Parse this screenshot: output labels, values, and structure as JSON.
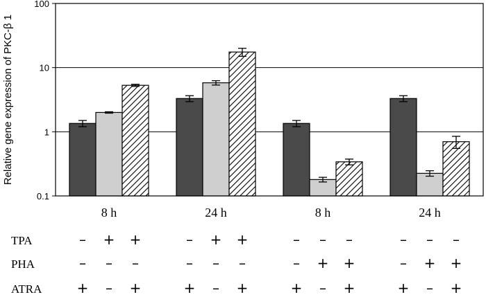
{
  "chart_data": {
    "type": "bar",
    "scale": "log",
    "ylabel": "Relative gene expression of PKC-β 1",
    "ylim": [
      0.1,
      100
    ],
    "y_ticks": [
      "0.1",
      "1",
      "10",
      "100"
    ],
    "grid": true,
    "groups": [
      {
        "label": "8 h",
        "bars": [
          {
            "value": 1.35,
            "err": 0.15,
            "fill": "dark"
          },
          {
            "value": 2.0,
            "err": 0.05,
            "fill": "light"
          },
          {
            "value": 5.3,
            "err": 0.2,
            "fill": "hatched"
          }
        ]
      },
      {
        "label": "24 h",
        "bars": [
          {
            "value": 3.3,
            "err": 0.35,
            "fill": "dark"
          },
          {
            "value": 5.8,
            "err": 0.45,
            "fill": "light"
          },
          {
            "value": 17.5,
            "err": 2.5,
            "fill": "hatched"
          }
        ]
      },
      {
        "label": "8 h",
        "bars": [
          {
            "value": 1.35,
            "err": 0.15,
            "fill": "dark"
          },
          {
            "value": 0.18,
            "err": 0.015,
            "fill": "light"
          },
          {
            "value": 0.34,
            "err": 0.035,
            "fill": "hatched"
          }
        ]
      },
      {
        "label": "24 h",
        "bars": [
          {
            "value": 3.3,
            "err": 0.35,
            "fill": "dark"
          },
          {
            "value": 0.225,
            "err": 0.022,
            "fill": "light"
          },
          {
            "value": 0.7,
            "err": 0.15,
            "fill": "hatched"
          }
        ]
      }
    ]
  },
  "treatments": {
    "rows": [
      {
        "label": "TPA",
        "signs": [
          "–",
          "+",
          "+",
          "–",
          "+",
          "+",
          "–",
          "–",
          "–",
          "–",
          "–",
          "–"
        ]
      },
      {
        "label": "PHA",
        "signs": [
          "–",
          "–",
          "–",
          "–",
          "–",
          "–",
          "–",
          "+",
          "+",
          "–",
          "+",
          "+"
        ]
      },
      {
        "label": "ATRA",
        "signs": [
          "+",
          "–",
          "+",
          "+",
          "–",
          "+",
          "+",
          "–",
          "+",
          "+",
          "–",
          "+"
        ]
      }
    ]
  },
  "colors": {
    "dark": "#4a4a4a",
    "light": "#cfcfcf",
    "hatched_bg": "#ffffff",
    "hatch": "#000000",
    "axis": "#000000"
  }
}
